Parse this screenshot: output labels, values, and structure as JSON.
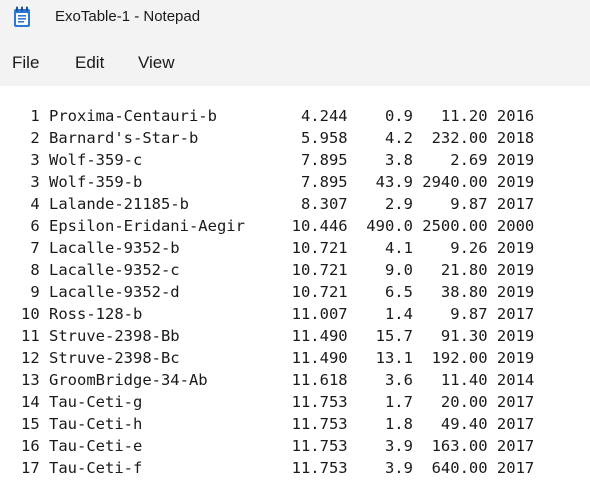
{
  "window": {
    "title": "ExoTable-1 - Notepad",
    "icon": "notepad-icon",
    "icon_color": "#2b78d4"
  },
  "menu": {
    "file": "File",
    "edit": "Edit",
    "view": "View"
  },
  "document": {
    "lines": [
      " 1 Proxima-Centauri-b         4.244    0.9   11.20 2016",
      " 2 Barnard's-Star-b           5.958    4.2  232.00 2018",
      " 3 Wolf-359-c                 7.895    3.8    2.69 2019",
      " 3 Wolf-359-b                 7.895   43.9 2940.00 2019",
      " 4 Lalande-21185-b            8.307    2.9    9.87 2017",
      " 6 Epsilon-Eridani-Aegir     10.446  490.0 2500.00 2000",
      " 7 Lacalle-9352-b            10.721    4.1    9.26 2019",
      " 8 Lacalle-9352-c            10.721    9.0   21.80 2019",
      " 9 Lacalle-9352-d            10.721    6.5   38.80 2019",
      "10 Ross-128-b                11.007    1.4    9.87 2017",
      "11 Struve-2398-Bb            11.490   15.7   91.30 2019",
      "12 Struve-2398-Bc            11.490   13.1  192.00 2019",
      "13 GroomBridge-34-Ab         11.618    3.6   11.40 2014",
      "14 Tau-Ceti-g                11.753    1.7   20.00 2017",
      "15 Tau-Ceti-h                11.753    1.8   49.40 2017",
      "16 Tau-Ceti-e                11.753    3.9  163.00 2017",
      "17 Tau-Ceti-f                11.753    3.9  640.00 2017"
    ]
  }
}
